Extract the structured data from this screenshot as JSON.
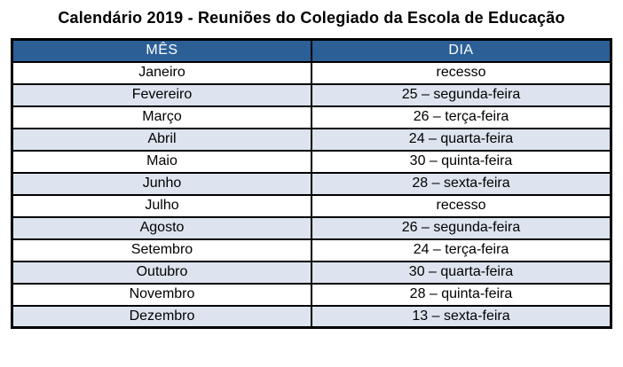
{
  "title": "Calendário 2019 - Reuniões do Colegiado da Escola de Educação",
  "table": {
    "headers": [
      "MÊS",
      "DIA"
    ],
    "rows": [
      {
        "mes": "Janeiro",
        "dia": "recesso"
      },
      {
        "mes": "Fevereiro",
        "dia": "25 – segunda-feira"
      },
      {
        "mes": "Março",
        "dia": "26 – terça-feira"
      },
      {
        "mes": "Abril",
        "dia": "24 – quarta-feira"
      },
      {
        "mes": "Maio",
        "dia": "30 – quinta-feira"
      },
      {
        "mes": "Junho",
        "dia": "28 – sexta-feira"
      },
      {
        "mes": "Julho",
        "dia": "recesso"
      },
      {
        "mes": "Agosto",
        "dia": "26 – segunda-feira"
      },
      {
        "mes": "Setembro",
        "dia": "24 – terça-feira"
      },
      {
        "mes": "Outubro",
        "dia": "30 – quarta-feira"
      },
      {
        "mes": "Novembro",
        "dia": "28 – quinta-feira"
      },
      {
        "mes": "Dezembro",
        "dia": "13 – sexta-feira"
      }
    ]
  },
  "colors": {
    "header_bg": "#2c5f96",
    "header_text": "#ffffff",
    "row_alt_bg": "#dde4ef",
    "border": "#000000",
    "title_text": "#000000",
    "page_bg": "#ffffff"
  }
}
